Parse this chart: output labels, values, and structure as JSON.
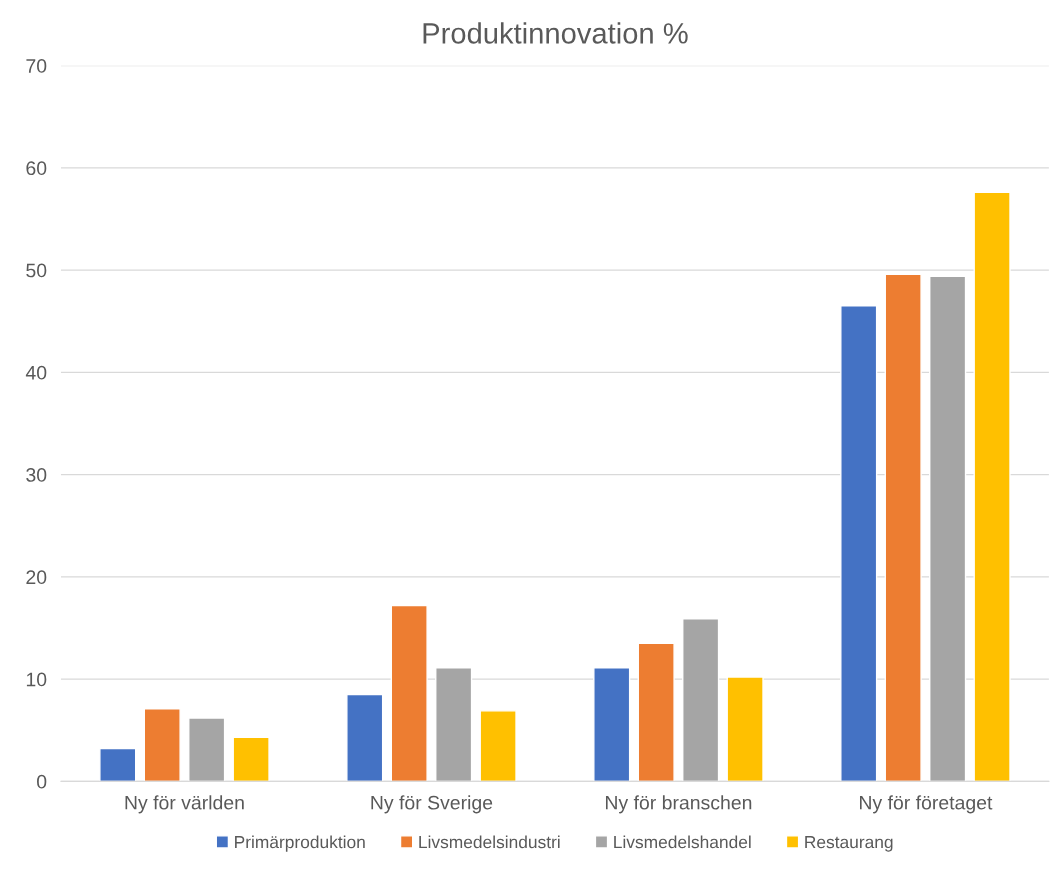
{
  "chart_data": {
    "type": "bar",
    "title": "Produktinnovation %",
    "categories": [
      "Ny för världen",
      "Ny för Sverige",
      "Ny för branschen",
      "Ny för företaget"
    ],
    "series": [
      {
        "name": "Primärproduktion",
        "color": "#4472c4",
        "values": [
          3.2,
          8.5,
          11.1,
          46.5
        ]
      },
      {
        "name": "Livsmedelsindustri",
        "color": "#ed7d31",
        "values": [
          7.1,
          17.2,
          13.5,
          49.6
        ]
      },
      {
        "name": "Livsmedelshandel",
        "color": "#a5a5a5",
        "values": [
          6.2,
          11.1,
          15.9,
          49.4
        ]
      },
      {
        "name": "Restaurang",
        "color": "#ffc000",
        "values": [
          4.3,
          6.9,
          10.2,
          57.6
        ]
      }
    ],
    "ylim": [
      0,
      70
    ],
    "yticks": [
      0,
      10,
      20,
      30,
      40,
      50,
      60,
      70
    ],
    "grid": "y",
    "legend": "bottom"
  }
}
